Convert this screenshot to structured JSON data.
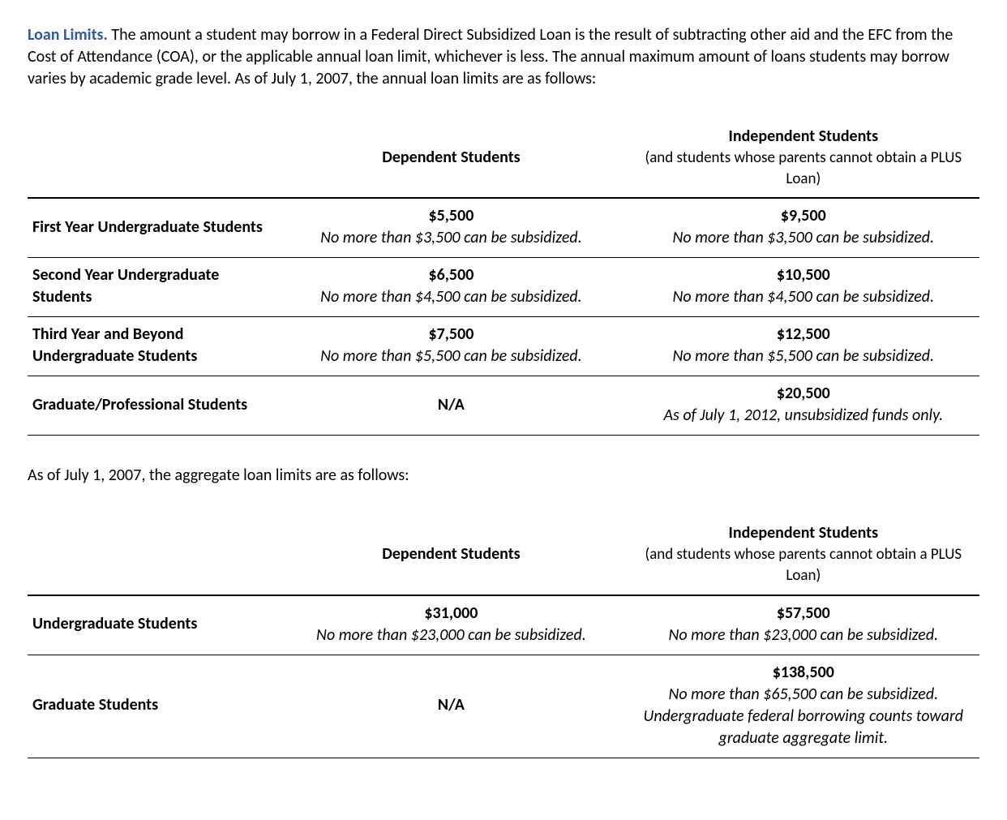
{
  "colors": {
    "heading": "#2e5aa8",
    "text": "#000000",
    "rule_thick": "#000000",
    "rule_thin": "#000000",
    "background": "#ffffff"
  },
  "typography": {
    "base_fontsize_pt": 15,
    "heading_fontsize_pt": 15,
    "font_family": "Calibri"
  },
  "intro": {
    "heading": "Loan Limits.",
    "body": " The amount a student may borrow in a Federal Direct Subsidized Loan is the result of subtracting other aid and the EFC from the Cost of Attendance (COA), or the applicable annual loan limit, whichever is less. The annual maximum amount of loans students may borrow varies by academic grade level. As of July 1, 2007, the annual loan limits are as follows:"
  },
  "annual_table": {
    "type": "table",
    "columns": {
      "rowlabel": "",
      "dependent": {
        "title": "Dependent Students",
        "sub": ""
      },
      "independent": {
        "title": "Independent Students",
        "sub": "(and students whose parents cannot obtain a PLUS Loan)"
      }
    },
    "rows": [
      {
        "label": "First Year Undergraduate Students",
        "dependent": {
          "amount": "$5,500",
          "note": "No more than $3,500 can be subsidized."
        },
        "independent": {
          "amount": "$9,500",
          "note": "No more than $3,500 can be subsidized."
        }
      },
      {
        "label": "Second Year Undergraduate Students",
        "dependent": {
          "amount": "$6,500",
          "note": "No more than $4,500 can be subsidized."
        },
        "independent": {
          "amount": "$10,500",
          "note": "No more than $4,500 can be subsidized."
        }
      },
      {
        "label": "Third Year and Beyond Undergraduate Students",
        "dependent": {
          "amount": "$7,500",
          "note": "No more than $5,500 can be subsidized."
        },
        "independent": {
          "amount": "$12,500",
          "note": "No more than $5,500 can be subsidized."
        }
      },
      {
        "label": "Graduate/Professional Students",
        "dependent": {
          "amount": "N/A",
          "note": ""
        },
        "independent": {
          "amount": "$20,500",
          "note": "As of July 1, 2012, unsubsidized funds only."
        }
      }
    ]
  },
  "mid_paragraph": "As of July 1, 2007, the aggregate loan limits are as follows:",
  "aggregate_table": {
    "type": "table",
    "columns": {
      "rowlabel": "",
      "dependent": {
        "title": "Dependent Students",
        "sub": ""
      },
      "independent": {
        "title": "Independent Students",
        "sub": "(and students whose parents cannot obtain a PLUS Loan)"
      }
    },
    "rows": [
      {
        "label": "Undergraduate Students",
        "dependent": {
          "amount": "$31,000",
          "note": "No more than $23,000 can be subsidized."
        },
        "independent": {
          "amount": "$57,500",
          "note": "No more than $23,000 can be subsidized."
        }
      },
      {
        "label": "Graduate Students",
        "dependent": {
          "amount": "N/A",
          "note": ""
        },
        "independent": {
          "amount": "$138,500",
          "note": "No more than $65,500 can be subsidized. Undergraduate federal borrowing counts toward graduate aggregate limit."
        }
      }
    ]
  }
}
